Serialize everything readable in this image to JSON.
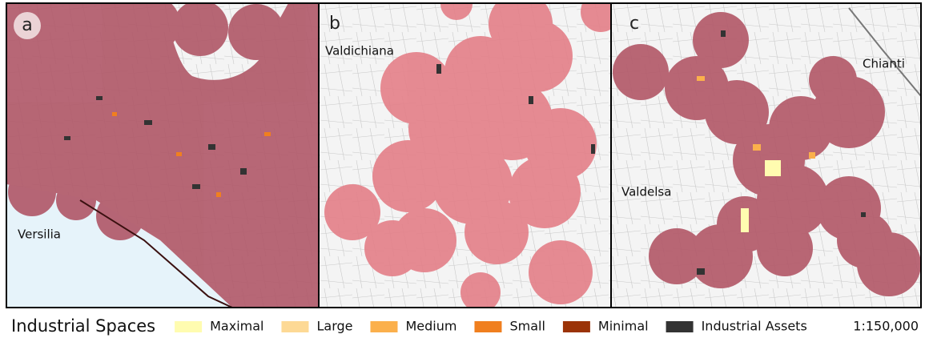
{
  "panels": [
    {
      "label": "a",
      "places": [
        "Versilia"
      ]
    },
    {
      "label": "b",
      "places": [
        "Valdichiana"
      ]
    },
    {
      "label": "c",
      "places": [
        "Chianti",
        "Valdelsa"
      ]
    }
  ],
  "legend": {
    "title": "Industrial Spaces",
    "items": [
      {
        "label": "Maximal",
        "color": "#fffcb0"
      },
      {
        "label": "Large",
        "color": "#fdd995"
      },
      {
        "label": "Medium",
        "color": "#fbb04c"
      },
      {
        "label": "Small",
        "color": "#f07f1f"
      },
      {
        "label": "Minimal",
        "color": "#9b3307"
      },
      {
        "label": "Industrial Assets",
        "color": "#333333"
      }
    ],
    "scale": "1:150,000"
  }
}
